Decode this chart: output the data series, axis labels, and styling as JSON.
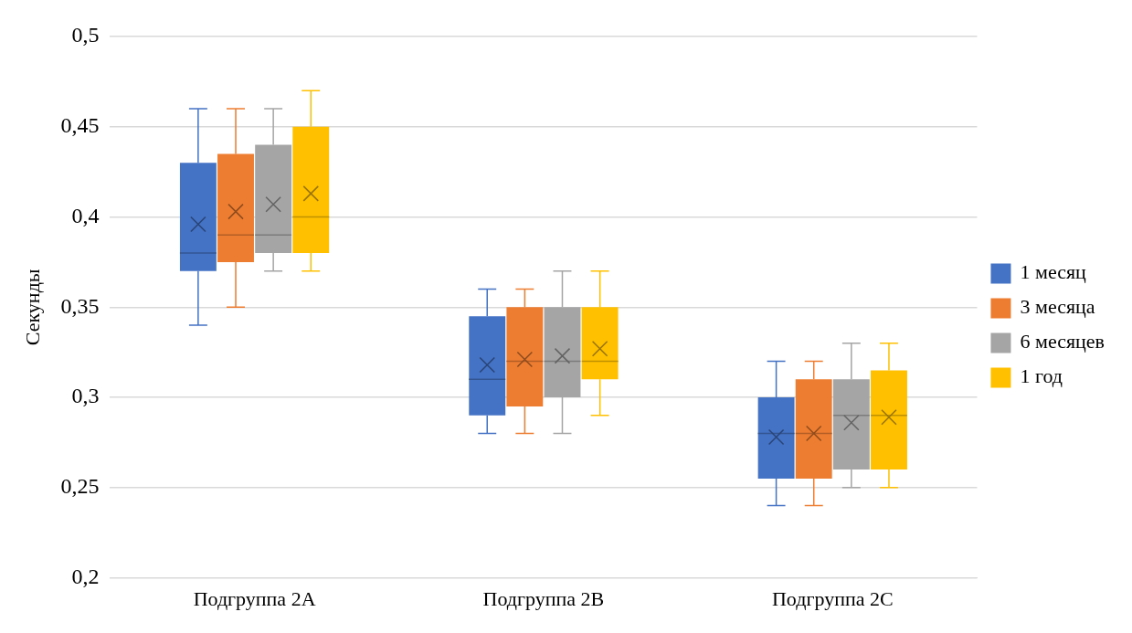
{
  "chart_data": {
    "type": "box",
    "ylabel": "Секунды",
    "categories": [
      "Подгруппа 2A",
      "Подгруппа 2B",
      "Подгруппа 2C"
    ],
    "ylim": [
      0.2,
      0.5
    ],
    "yticks": [
      {
        "value": 0.2,
        "label": "0,2"
      },
      {
        "value": 0.25,
        "label": "0,25"
      },
      {
        "value": 0.3,
        "label": "0,3"
      },
      {
        "value": 0.35,
        "label": "0,35"
      },
      {
        "value": 0.4,
        "label": "0,4"
      },
      {
        "value": 0.45,
        "label": "0,45"
      },
      {
        "value": 0.5,
        "label": "0,5"
      }
    ],
    "grid": "y",
    "legend": "right",
    "marker": "cross",
    "series": [
      {
        "name": "1 месяц",
        "color": "#4472c4",
        "boxes": [
          {
            "low": 0.34,
            "q1": 0.37,
            "median": 0.38,
            "q3": 0.43,
            "high": 0.46,
            "mean": 0.396
          },
          {
            "low": 0.28,
            "q1": 0.29,
            "median": 0.31,
            "q3": 0.345,
            "high": 0.36,
            "mean": 0.318
          },
          {
            "low": 0.24,
            "q1": 0.255,
            "median": 0.28,
            "q3": 0.3,
            "high": 0.32,
            "mean": 0.278
          }
        ]
      },
      {
        "name": "3 месяца",
        "color": "#ed7d31",
        "boxes": [
          {
            "low": 0.35,
            "q1": 0.375,
            "median": 0.39,
            "q3": 0.435,
            "high": 0.46,
            "mean": 0.403
          },
          {
            "low": 0.28,
            "q1": 0.295,
            "median": 0.32,
            "q3": 0.35,
            "high": 0.36,
            "mean": 0.321
          },
          {
            "low": 0.24,
            "q1": 0.255,
            "median": 0.28,
            "q3": 0.31,
            "high": 0.32,
            "mean": 0.28
          }
        ]
      },
      {
        "name": "6 месяцев",
        "color": "#a5a5a5",
        "boxes": [
          {
            "low": 0.37,
            "q1": 0.38,
            "median": 0.39,
            "q3": 0.44,
            "high": 0.46,
            "mean": 0.407
          },
          {
            "low": 0.28,
            "q1": 0.3,
            "median": 0.32,
            "q3": 0.35,
            "high": 0.37,
            "mean": 0.323
          },
          {
            "low": 0.25,
            "q1": 0.26,
            "median": 0.29,
            "q3": 0.31,
            "high": 0.33,
            "mean": 0.286
          }
        ]
      },
      {
        "name": "1 год",
        "color": "#ffc000",
        "boxes": [
          {
            "low": 0.37,
            "q1": 0.38,
            "median": 0.4,
            "q3": 0.45,
            "high": 0.47,
            "mean": 0.413
          },
          {
            "low": 0.29,
            "q1": 0.31,
            "median": 0.32,
            "q3": 0.35,
            "high": 0.37,
            "mean": 0.327
          },
          {
            "low": 0.25,
            "q1": 0.26,
            "median": 0.29,
            "q3": 0.315,
            "high": 0.33,
            "mean": 0.289
          }
        ]
      }
    ]
  }
}
